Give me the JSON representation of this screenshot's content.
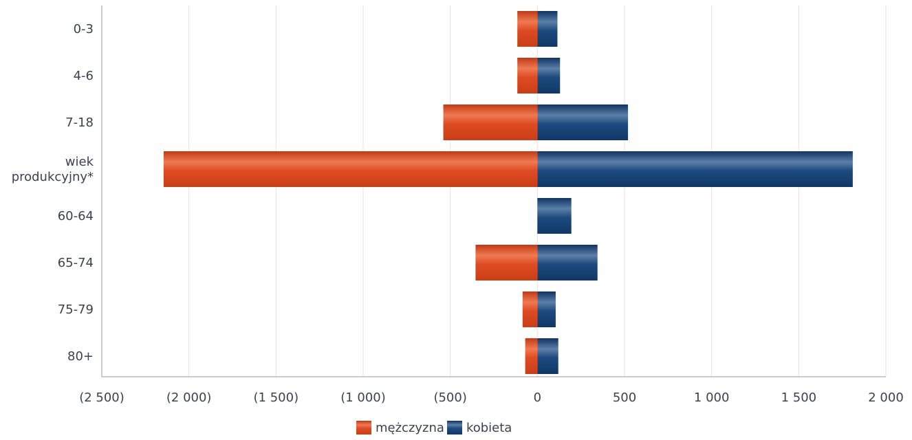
{
  "chart_data": {
    "type": "bar",
    "orientation": "horizontal",
    "categories": [
      "0-3",
      "4-6",
      "7-18",
      "wiek produkcyjny*",
      "60-64",
      "65-74",
      "75-79",
      "80+"
    ],
    "series": [
      {
        "name": "mężczyzna",
        "values": [
          -115,
          -115,
          -540,
          -2145,
          0,
          -355,
          -85,
          -70
        ],
        "color": "#d9461f"
      },
      {
        "name": "kobieta",
        "values": [
          115,
          130,
          520,
          1810,
          195,
          345,
          105,
          120
        ],
        "color": "#17457a"
      }
    ],
    "xlim": [
      -2500,
      2000
    ],
    "x_ticks": [
      -2500,
      -2000,
      -1500,
      -1000,
      -500,
      0,
      500,
      1000,
      1500,
      2000
    ],
    "x_tick_labels": [
      "(2 500)",
      "(2 000)",
      "(1 500)",
      "(1 000)",
      "(500)",
      "0",
      "500",
      "1 000",
      "1 500",
      "2 000"
    ],
    "grid": "vertical",
    "legend_position": "bottom-center",
    "title": "",
    "xlabel": "",
    "ylabel": ""
  },
  "legend": {
    "items": [
      {
        "label": "mężczyzna",
        "color": "#d9461f"
      },
      {
        "label": "kobieta",
        "color": "#17457a"
      }
    ]
  }
}
